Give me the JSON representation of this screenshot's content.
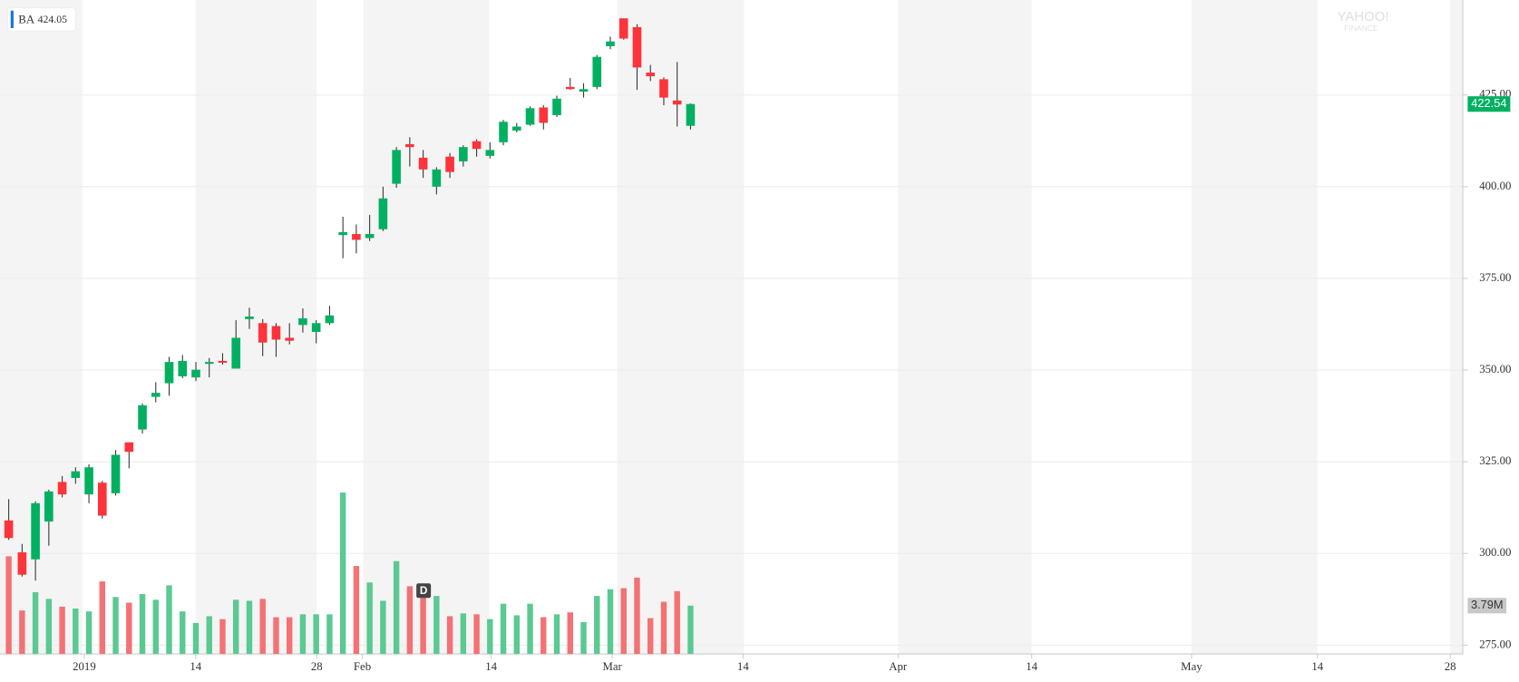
{
  "chart_data": {
    "type": "candlestick",
    "symbol": "BA",
    "quote": 424.05,
    "watermark": [
      "YAHOO!",
      "FINANCE"
    ],
    "dividend_marker": "D",
    "open": [
      309.0,
      300.3,
      298.4,
      308.7,
      319.5,
      320.6,
      316.1,
      319.3,
      316.4,
      330.3,
      333.8,
      342.7,
      346.4,
      348.3,
      348.0,
      351.7,
      352.5,
      350.4,
      363.9,
      362.8,
      362.0,
      358.8,
      362.3,
      360.4,
      362.8,
      386.8,
      387.1,
      386.0,
      388.4,
      400.8,
      411.6,
      407.9,
      400.0,
      408.2,
      406.9,
      412.4,
      408.4,
      412.1,
      415.3,
      416.9,
      421.6,
      419.5,
      427.2,
      425.9,
      427.2,
      438.3,
      445.9,
      443.5,
      431.1,
      429.3,
      423.5,
      416.6
    ],
    "high": [
      314.8,
      302.6,
      314.2,
      317.4,
      321.1,
      323.5,
      324.3,
      319.8,
      328.2,
      330.3,
      340.9,
      346.7,
      353.6,
      354.1,
      352.2,
      353.3,
      354.6,
      363.6,
      367.0,
      363.9,
      362.8,
      362.8,
      366.8,
      363.6,
      367.5,
      391.8,
      389.7,
      392.3,
      400.0,
      410.8,
      413.5,
      410.0,
      405.3,
      409.2,
      411.3,
      412.9,
      412.1,
      418.2,
      417.4,
      421.9,
      422.2,
      424.8,
      429.6,
      428.2,
      435.9,
      440.9,
      445.9,
      444.3,
      433.2,
      429.8,
      434.0,
      422.7
    ],
    "low": [
      303.7,
      293.7,
      292.6,
      302.1,
      315.3,
      319.0,
      313.7,
      309.5,
      315.8,
      323.2,
      332.7,
      341.2,
      343.0,
      347.8,
      347.0,
      348.0,
      351.5,
      350.4,
      361.2,
      353.8,
      353.6,
      357.0,
      360.2,
      357.3,
      362.3,
      380.5,
      381.8,
      385.2,
      387.9,
      399.7,
      405.5,
      402.4,
      397.9,
      402.4,
      405.5,
      408.2,
      407.7,
      411.3,
      414.8,
      416.6,
      415.6,
      419.0,
      426.4,
      424.3,
      426.6,
      437.5,
      440.1,
      426.4,
      428.8,
      422.2,
      416.4,
      415.6
    ],
    "close": [
      304.2,
      294.2,
      313.7,
      316.9,
      316.1,
      322.4,
      323.5,
      310.3,
      326.9,
      327.7,
      340.4,
      343.8,
      352.2,
      352.5,
      350.1,
      352.2,
      352.0,
      358.8,
      364.6,
      357.5,
      358.3,
      358.0,
      364.1,
      362.8,
      364.9,
      387.6,
      385.5,
      387.1,
      396.8,
      410.0,
      410.8,
      404.7,
      404.7,
      404.0,
      410.8,
      410.3,
      410.0,
      417.7,
      416.4,
      421.4,
      417.4,
      424.0,
      426.6,
      426.6,
      435.4,
      439.6,
      440.4,
      432.5,
      430.1,
      424.3,
      422.4,
      422.54
    ],
    "volume": [
      7.66,
      3.41,
      4.85,
      4.32,
      3.71,
      3.56,
      3.34,
      5.69,
      4.47,
      4.02,
      4.7,
      4.25,
      5.38,
      3.34,
      2.43,
      2.96,
      2.73,
      4.25,
      4.17,
      4.32,
      2.88,
      2.88,
      3.11,
      3.11,
      3.11,
      12.66,
      6.9,
      5.61,
      4.17,
      7.28,
      5.31,
      5.0,
      4.55,
      2.96,
      3.18,
      3.11,
      2.73,
      3.94,
      3.03,
      3.94,
      2.88,
      3.11,
      3.26,
      2.5,
      4.55,
      5.08,
      5.16,
      5.99,
      2.81,
      4.09,
      4.93,
      3.79
    ],
    "last_volume_label": "3.79M",
    "up_color": "#00b061",
    "down_color": "#ff333a",
    "volume_up_color": "#5ac992",
    "volume_down_color": "#f47174",
    "ylim": [
      272.6,
      450.9
    ],
    "volume_ylim": [
      0,
      51.3
    ],
    "yticks": [
      {
        "value": 275,
        "label": "275.00"
      },
      {
        "value": 300,
        "label": "300.00"
      },
      {
        "value": 325,
        "label": "325.00"
      },
      {
        "value": 350,
        "label": "350.00"
      },
      {
        "value": 375,
        "label": "375.00"
      },
      {
        "value": 400,
        "label": "400.00"
      },
      {
        "value": 425,
        "label": "425.00"
      }
    ],
    "x_tick_labels": [
      "2019",
      "14",
      "28",
      "Feb",
      "14",
      "Mar",
      "14",
      "Apr",
      "14",
      "May",
      "14",
      "28"
    ],
    "grid": true
  }
}
